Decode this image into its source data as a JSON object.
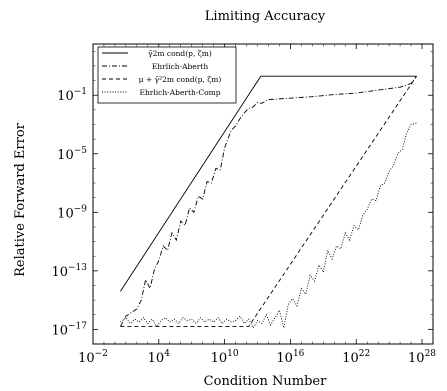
{
  "chart_data": {
    "type": "line",
    "title": "Limiting Accuracy",
    "xlabel": "Condition Number",
    "ylabel": "Relative Forward Error",
    "x_scale": "log",
    "y_scale": "log",
    "xlim_exp": [
      -2,
      29
    ],
    "ylim_exp": [
      -18,
      2.5
    ],
    "x_ticks": [
      {
        "exp": -2,
        "label": "10^{-2}"
      },
      {
        "exp": 4,
        "label": "10^{4}"
      },
      {
        "exp": 10,
        "label": "10^{10}"
      },
      {
        "exp": 16,
        "label": "10^{16}"
      },
      {
        "exp": 22,
        "label": "10^{22}"
      },
      {
        "exp": 28,
        "label": "10^{28}"
      }
    ],
    "y_ticks": [
      {
        "exp": -1,
        "label": "10^{-1}"
      },
      {
        "exp": -5,
        "label": "10^{-5}"
      },
      {
        "exp": -9,
        "label": "10^{-9}"
      },
      {
        "exp": -13,
        "label": "10^{-13}"
      },
      {
        "exp": -17,
        "label": "10^{-17}"
      }
    ],
    "legend_position": "top-left",
    "series": [
      {
        "name": "γ̃2m cond(p, ζm)",
        "style": "solid",
        "x_exp": [
          0.5,
          13.3,
          27.5
        ],
        "y_exp": [
          -14.4,
          0.3,
          0.3
        ]
      },
      {
        "name": "Ehrlich-Aberth",
        "style": "dashdot",
        "x_exp": [
          0.5,
          1.0,
          1.6,
          2.0,
          2.4,
          2.8,
          3.2,
          3.6,
          4.0,
          4.4,
          4.8,
          5.2,
          5.6,
          6.0,
          6.4,
          6.8,
          7.2,
          7.6,
          8.0,
          8.4,
          8.8,
          9.2,
          9.6,
          10.0,
          10.3,
          10.6,
          11.0,
          11.4,
          11.8,
          12.2,
          12.6,
          13.0,
          13.4,
          14.0,
          15.0,
          16.0,
          18.0,
          20.0,
          22.0,
          24.0,
          26.0,
          27.0,
          27.5
        ],
        "y_exp": [
          -16.8,
          -16.1,
          -15.8,
          -15.6,
          -15.0,
          -13.6,
          -14.2,
          -12.9,
          -12.3,
          -11.3,
          -11.6,
          -10.4,
          -10.9,
          -9.6,
          -9.9,
          -8.7,
          -9.0,
          -7.9,
          -8.1,
          -6.9,
          -7.0,
          -6.0,
          -6.1,
          -4.6,
          -4.0,
          -3.4,
          -3.1,
          -2.6,
          -2.2,
          -1.9,
          -1.8,
          -1.5,
          -1.55,
          -1.3,
          -1.25,
          -1.2,
          -1.1,
          -0.95,
          -0.85,
          -0.65,
          -0.45,
          -0.2,
          0.3
        ]
      },
      {
        "name": "μ + γ̃²2m cond(p, ζm)",
        "style": "dashed",
        "x_exp": [
          0.5,
          12.2,
          27.5
        ],
        "y_exp": [
          -16.8,
          -16.8,
          0.3
        ]
      },
      {
        "name": "Ehrlich-Aberth-Comp",
        "style": "dotted",
        "x_exp": [
          0.5,
          1.0,
          1.4,
          1.8,
          2.2,
          2.6,
          3.0,
          3.4,
          3.8,
          4.2,
          4.6,
          5.0,
          5.4,
          5.8,
          6.2,
          6.6,
          7.0,
          7.4,
          7.8,
          8.2,
          8.6,
          9.0,
          9.4,
          9.8,
          10.2,
          10.6,
          11.0,
          11.4,
          11.8,
          12.2,
          12.6,
          13.0,
          13.4,
          13.8,
          14.2,
          14.6,
          15.0,
          15.4,
          15.8,
          16.2,
          16.6,
          17.0,
          17.4,
          17.8,
          18.2,
          18.6,
          19.0,
          19.4,
          19.8,
          20.2,
          20.6,
          21.0,
          21.4,
          21.8,
          22.2,
          22.6,
          23.0,
          23.4,
          23.8,
          24.2,
          24.6,
          25.0,
          25.4,
          25.8,
          26.2,
          26.6,
          27.0,
          27.5
        ],
        "y_exp": [
          -16.5,
          -16.2,
          -16.6,
          -16.3,
          -16.5,
          -16.2,
          -16.6,
          -16.3,
          -16.8,
          -16.4,
          -16.2,
          -16.5,
          -16.3,
          -16.6,
          -16.2,
          -16.4,
          -16.3,
          -16.6,
          -16.2,
          -16.5,
          -16.3,
          -16.5,
          -16.2,
          -16.6,
          -16.3,
          -16.5,
          -16.4,
          -16.1,
          -16.6,
          -16.3,
          -16.9,
          -16.4,
          -16.6,
          -16.0,
          -16.7,
          -16.2,
          -15.7,
          -16.9,
          -15.3,
          -14.9,
          -15.4,
          -14.2,
          -14.6,
          -13.3,
          -13.7,
          -12.6,
          -13.1,
          -11.6,
          -12.2,
          -11.3,
          -11.5,
          -10.4,
          -10.9,
          -9.9,
          -10.2,
          -9.2,
          -8.8,
          -8.1,
          -8.2,
          -7.2,
          -7.0,
          -6.2,
          -5.8,
          -5.0,
          -4.7,
          -3.6,
          -3.0,
          -2.9
        ]
      }
    ]
  }
}
